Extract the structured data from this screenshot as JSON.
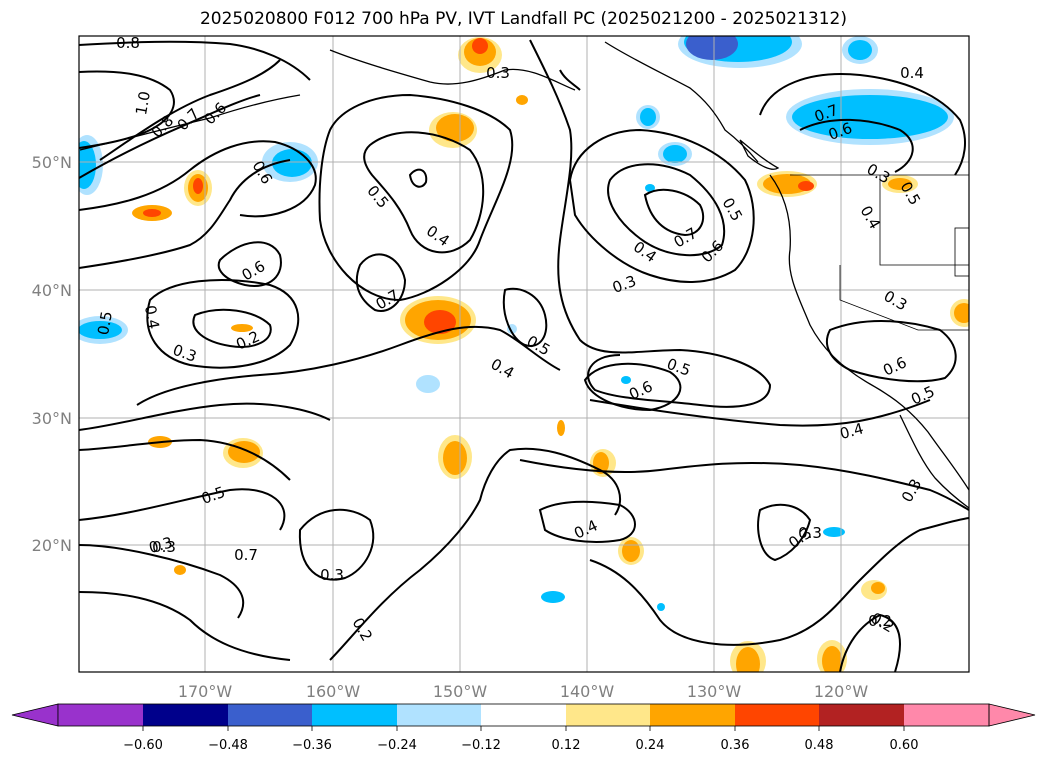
{
  "title": "2025020800 F012 700 hPa PV, IVT Landfall PC (2025021200 - 2025021312)",
  "x_tick_labels": [
    "170°W",
    "160°W",
    "150°W",
    "140°W",
    "130°W",
    "120°W"
  ],
  "y_tick_labels": [
    "50°N",
    "40°N",
    "30°N",
    "20°N"
  ],
  "colorbar": {
    "tick_labels": [
      "−0.60",
      "−0.48",
      "−0.36",
      "−0.24",
      "−0.12",
      "0.12",
      "0.24",
      "0.36",
      "0.48",
      "0.60"
    ],
    "colors": [
      "#9932CC",
      "#00008B",
      "#3A5FCD",
      "#00BFFF",
      "#B0E2FF",
      "#FFFFFF",
      "#FFE78A",
      "#FFA500",
      "#FF4500",
      "#B22222",
      "#FF88AA"
    ]
  },
  "contour_labels": [
    "0.8",
    "1.0",
    "0.8",
    "0.7",
    "0.6",
    "0.3",
    "0.6",
    "0.5",
    "0.4",
    "0.6",
    "0.5",
    "0.4",
    "0.3",
    "0.7",
    "0.2",
    "0.3",
    "0.4",
    "0.5",
    "0.4",
    "0.3",
    "0.7",
    "0.6",
    "0.5",
    "0.4",
    "0.7",
    "0.6",
    "0.5",
    "0.4",
    "0.5",
    "0.6",
    "0.7",
    "0.6",
    "0.5",
    "0.4",
    "0.3",
    "0.5",
    "0.3",
    "0.2",
    "0.3",
    "0.2",
    "0.3",
    "0.3",
    "0.3",
    "0.4",
    "0.3",
    "0.2"
  ]
}
